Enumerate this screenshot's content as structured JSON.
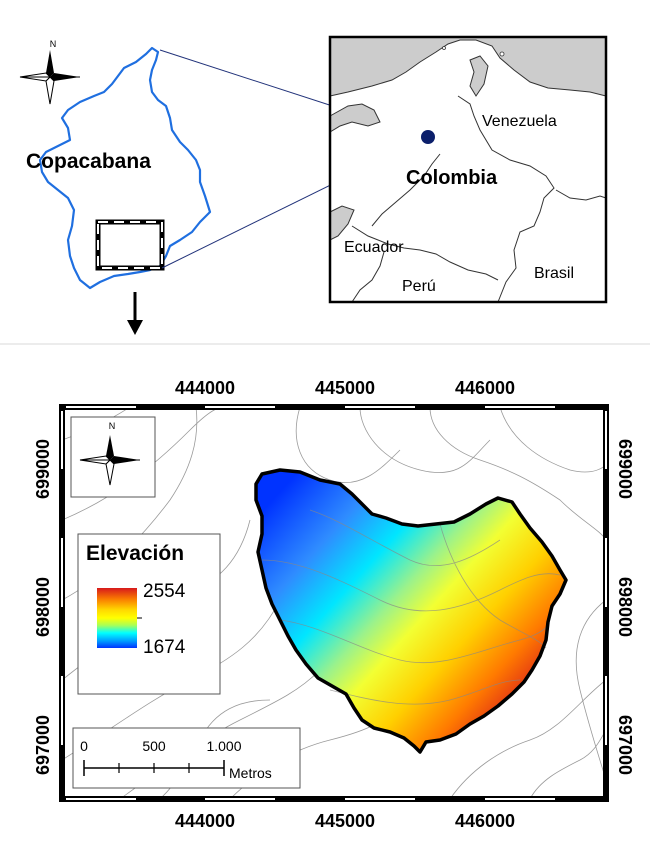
{
  "location_map": {
    "municipality_label": "Copacabana",
    "north_label": "N",
    "countries": {
      "venezuela": "Venezuela",
      "colombia": "Colombia",
      "ecuador": "Ecuador",
      "peru": "Perú",
      "brasil": "Brasil"
    }
  },
  "elevation_map": {
    "north_label": "N",
    "x_ticks": [
      "444000",
      "445000",
      "446000"
    ],
    "y_ticks": [
      "699000",
      "698000",
      "697000"
    ],
    "legend": {
      "title": "Elevación",
      "max": "2554",
      "min": "1674",
      "colors": [
        "#d7191c",
        "#f97a00",
        "#ffd700",
        "#ffff00",
        "#aaff55",
        "#00ffff",
        "#009fff",
        "#0033ff"
      ]
    },
    "scale_bar": {
      "labels": [
        "0",
        "500",
        "1.000"
      ],
      "unit": "Metros"
    }
  },
  "colors": {
    "watershed_outline": "#1f6fe0",
    "inset_land": "#ffffff",
    "inset_sea": "#cccccc",
    "connector": "#22337a",
    "location_dot": "#0b1f6b"
  }
}
